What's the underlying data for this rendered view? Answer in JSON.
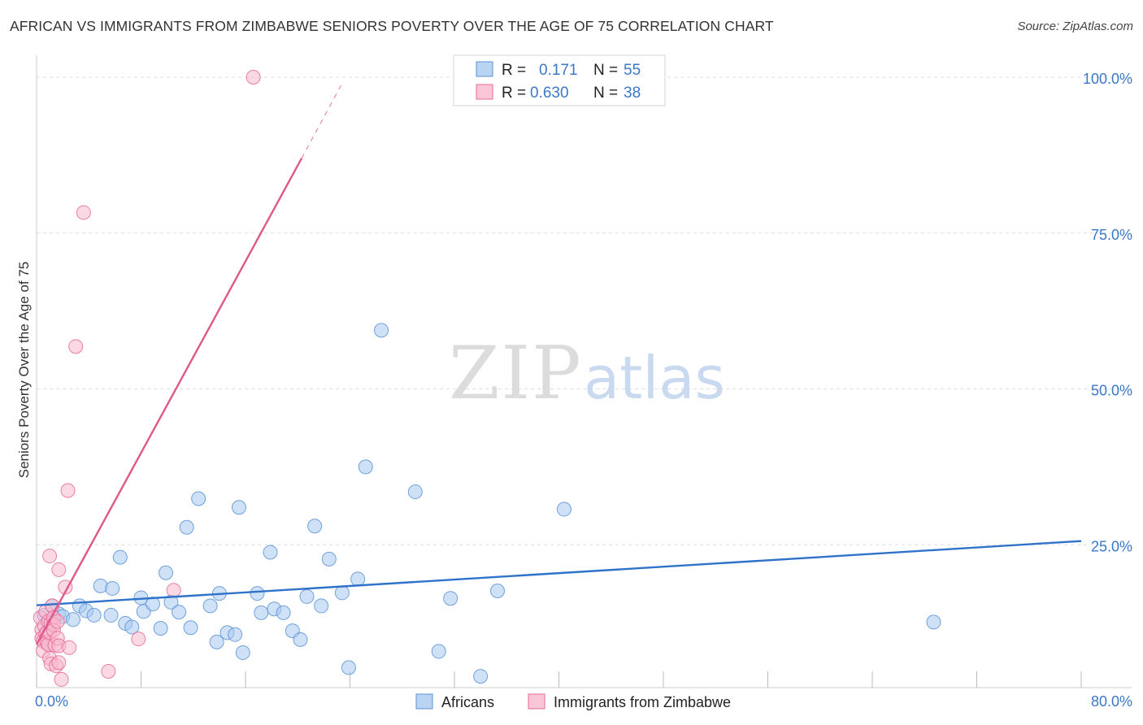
{
  "header": {
    "title": "AFRICAN VS IMMIGRANTS FROM ZIMBABWE SENIORS POVERTY OVER THE AGE OF 75 CORRELATION CHART",
    "source": "Source: ZipAtlas.com"
  },
  "watermark": {
    "zip": "ZIP",
    "atlas": "atlas"
  },
  "chart_data": {
    "type": "scatter",
    "title": "AFRICAN VS IMMIGRANTS FROM ZIMBABWE SENIORS POVERTY OVER THE AGE OF 75 CORRELATION CHART",
    "xlabel": "",
    "ylabel": "Seniors Poverty Over the Age of 75",
    "xlim": [
      0,
      80
    ],
    "ylim": [
      0,
      100
    ],
    "x_tick_labels": {
      "left": "0.0%",
      "right": "80.0%"
    },
    "y_ticks": [
      {
        "value": 25,
        "label": "25.0%"
      },
      {
        "value": 50,
        "label": "50.0%"
      },
      {
        "value": 75,
        "label": "75.0%"
      },
      {
        "value": 100,
        "label": "100.0%"
      }
    ],
    "grid": true,
    "legend_position": "top-center",
    "series": [
      {
        "name": "Africans",
        "color": "#5b93d6",
        "fill": "#a8c8f0",
        "line_color": "#2f72c9",
        "r_label": "R =",
        "r_value": "0.171",
        "n_label": "N =",
        "n_value": "55",
        "trend": {
          "x0": 0,
          "y0": 15.3,
          "x1": 80,
          "y1": 25.6
        },
        "points": [
          [
            0.6,
            13.7
          ],
          [
            1.0,
            12.6
          ],
          [
            1.2,
            15.2
          ],
          [
            1.7,
            13.9
          ],
          [
            2.0,
            13.5
          ],
          [
            2.8,
            13.0
          ],
          [
            3.3,
            15.2
          ],
          [
            3.8,
            14.4
          ],
          [
            4.4,
            13.7
          ],
          [
            4.9,
            18.4
          ],
          [
            5.7,
            13.7
          ],
          [
            5.8,
            18.0
          ],
          [
            6.4,
            23.0
          ],
          [
            6.8,
            12.4
          ],
          [
            7.3,
            11.8
          ],
          [
            8.0,
            16.5
          ],
          [
            8.2,
            14.3
          ],
          [
            8.9,
            15.5
          ],
          [
            9.5,
            11.6
          ],
          [
            9.9,
            20.5
          ],
          [
            10.3,
            15.8
          ],
          [
            10.9,
            14.2
          ],
          [
            11.5,
            27.8
          ],
          [
            11.8,
            11.7
          ],
          [
            12.4,
            32.4
          ],
          [
            13.3,
            15.2
          ],
          [
            13.8,
            9.4
          ],
          [
            14.0,
            17.2
          ],
          [
            14.6,
            10.9
          ],
          [
            15.2,
            10.6
          ],
          [
            15.5,
            31.0
          ],
          [
            15.8,
            7.7
          ],
          [
            16.9,
            17.2
          ],
          [
            17.2,
            14.1
          ],
          [
            17.9,
            23.8
          ],
          [
            18.2,
            14.7
          ],
          [
            18.9,
            14.1
          ],
          [
            19.6,
            11.2
          ],
          [
            20.2,
            9.8
          ],
          [
            20.7,
            16.7
          ],
          [
            21.3,
            28.0
          ],
          [
            21.8,
            15.2
          ],
          [
            22.4,
            22.7
          ],
          [
            23.4,
            17.3
          ],
          [
            23.9,
            5.3
          ],
          [
            24.6,
            19.5
          ],
          [
            25.2,
            37.5
          ],
          [
            26.4,
            59.4
          ],
          [
            29.0,
            33.5
          ],
          [
            30.8,
            7.9
          ],
          [
            31.7,
            16.4
          ],
          [
            34.0,
            3.9
          ],
          [
            35.3,
            17.6
          ],
          [
            40.4,
            30.7
          ],
          [
            68.7,
            12.6
          ]
        ]
      },
      {
        "name": "Immigrants from Zimbabwe",
        "color": "#e66a98",
        "fill": "#f7b9cd",
        "line_color": "#e0588a",
        "r_label": "R =",
        "r_value": "0.630",
        "n_label": "N =",
        "n_value": "38",
        "trend": {
          "x0": 0,
          "y0": 9.0,
          "x1": 20.3,
          "y1": 87.0
        },
        "trend_dashed": {
          "x0": 20.3,
          "y0": 87.0,
          "x1": 23.5,
          "y1": 99.4
        },
        "points": [
          [
            0.3,
            13.3
          ],
          [
            0.4,
            11.4
          ],
          [
            0.4,
            10.0
          ],
          [
            0.5,
            9.5
          ],
          [
            0.5,
            8.0
          ],
          [
            0.6,
            12.0
          ],
          [
            0.7,
            10.7
          ],
          [
            0.7,
            14.3
          ],
          [
            0.8,
            11.0
          ],
          [
            0.8,
            9.3
          ],
          [
            0.9,
            12.7
          ],
          [
            0.9,
            9.0
          ],
          [
            1.0,
            10.9
          ],
          [
            1.0,
            23.2
          ],
          [
            1.0,
            6.8
          ],
          [
            1.1,
            5.9
          ],
          [
            1.1,
            12.4
          ],
          [
            1.2,
            15.2
          ],
          [
            1.3,
            13.3
          ],
          [
            1.3,
            12.2
          ],
          [
            1.3,
            11.3
          ],
          [
            1.4,
            8.9
          ],
          [
            1.5,
            5.6
          ],
          [
            1.6,
            12.7
          ],
          [
            1.6,
            10.0
          ],
          [
            1.7,
            6.1
          ],
          [
            1.7,
            8.8
          ],
          [
            1.7,
            21.0
          ],
          [
            1.9,
            3.4
          ],
          [
            2.2,
            18.2
          ],
          [
            2.4,
            33.7
          ],
          [
            2.5,
            8.5
          ],
          [
            3.0,
            56.8
          ],
          [
            3.6,
            78.3
          ],
          [
            5.5,
            4.7
          ],
          [
            7.8,
            9.9
          ],
          [
            10.5,
            17.7
          ],
          [
            16.6,
            100.0
          ]
        ]
      }
    ]
  }
}
